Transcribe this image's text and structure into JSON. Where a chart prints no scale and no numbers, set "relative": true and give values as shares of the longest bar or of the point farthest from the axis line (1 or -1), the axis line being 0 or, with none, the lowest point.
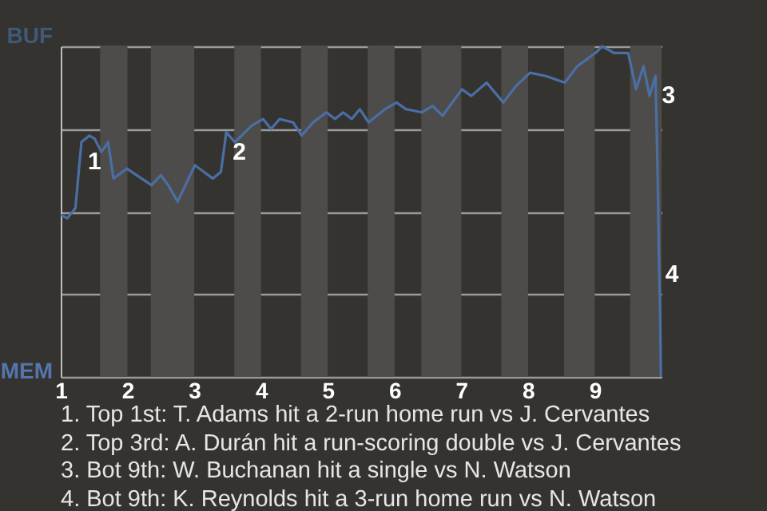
{
  "chart_data": {
    "type": "line",
    "relative": true,
    "xlim": [
      1,
      10
    ],
    "xticks": [
      1,
      2,
      3,
      4,
      5,
      6,
      7,
      8,
      9
    ],
    "grid": "y",
    "x": [
      1,
      1.1,
      1.22,
      1.31,
      1.43,
      1.51,
      1.61,
      1.71,
      1.79,
      1.99,
      2.36,
      2.5,
      2.61,
      2.75,
      3.01,
      3.28,
      3.4,
      3.48,
      3.61,
      3.86,
      4.03,
      4.15,
      4.28,
      4.48,
      4.61,
      4.78,
      4.98,
      5.11,
      5.23,
      5.36,
      5.48,
      5.61,
      5.86,
      6.03,
      6.17,
      6.41,
      6.57,
      6.72,
      7.01,
      7.15,
      7.38,
      7.63,
      7.82,
      8.03,
      8.27,
      8.55,
      8.74,
      9.01,
      9.11,
      9.29,
      9.5,
      9.62,
      9.73,
      9.82,
      9.91,
      9.93,
      9.95,
      9.96,
      9.98,
      9.99
    ],
    "series": [
      {
        "color": "#4a6fa5",
        "values": [
          0.49,
          0.48,
          0.51,
          0.71,
          0.73,
          0.72,
          0.68,
          0.71,
          0.6,
          0.63,
          0.58,
          0.61,
          0.58,
          0.53,
          0.64,
          0.6,
          0.62,
          0.74,
          0.71,
          0.76,
          0.78,
          0.75,
          0.78,
          0.77,
          0.73,
          0.77,
          0.8,
          0.78,
          0.8,
          0.78,
          0.81,
          0.77,
          0.81,
          0.83,
          0.81,
          0.8,
          0.82,
          0.79,
          0.87,
          0.85,
          0.89,
          0.83,
          0.88,
          0.92,
          0.91,
          0.89,
          0.94,
          0.98,
          1,
          0.98,
          0.98,
          0.87,
          0.94,
          0.85,
          0.91,
          0.72,
          0.53,
          0.37,
          0.19,
          0
        ]
      }
    ],
    "bands": [
      {
        "axis": "x",
        "from": 1.59,
        "to": 2,
        "color": "#4e4c4a"
      },
      {
        "axis": "x",
        "from": 2.35,
        "to": 3,
        "color": "#4e4c4a"
      },
      {
        "axis": "x",
        "from": 3.6,
        "to": 4,
        "color": "#4e4c4a"
      },
      {
        "axis": "x",
        "from": 4.6,
        "to": 5,
        "color": "#4e4c4a"
      },
      {
        "axis": "x",
        "from": 5.6,
        "to": 6,
        "color": "#4e4c4a"
      },
      {
        "axis": "x",
        "from": 6.4,
        "to": 7,
        "color": "#4e4c4a"
      },
      {
        "axis": "x",
        "from": 7.6,
        "to": 8,
        "color": "#4e4c4a"
      },
      {
        "axis": "x",
        "from": 8.54,
        "to": 9,
        "color": "#4e4c4a"
      },
      {
        "axis": "x",
        "from": 9.53,
        "to": 10,
        "color": "#4e4c4a"
      }
    ],
    "annotations": [
      "BUF",
      "MEM",
      {
        "text": "1",
        "x": 1.31,
        "y": 0.71
      },
      {
        "text": "2",
        "x": 3.48,
        "y": 0.74
      },
      {
        "text": "3",
        "x": 9.91,
        "y": 0.91
      },
      {
        "text": "4",
        "x": 9.96,
        "y": 0.37
      },
      "1. Top 1st: T. Adams hit a 2-run home run vs J. Cervantes",
      "2. Top 3rd: A. Durán hit a run-scoring double vs J. Cervantes",
      "3. Bot 9th: W. Buchanan hit a single vs N. Watson",
      "4. Bot 9th: K. Reynolds hit a 3-run home run vs N. Watson"
    ]
  }
}
